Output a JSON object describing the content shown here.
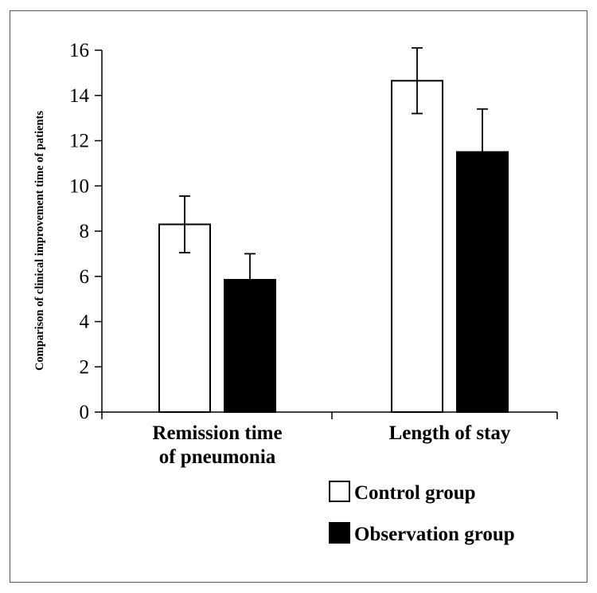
{
  "chart_data": {
    "type": "bar",
    "title": "",
    "xlabel": "",
    "ylabel": "Comparison of clinical improvement time of patients",
    "ylim": [
      0,
      16
    ],
    "yticks": [
      0,
      2,
      4,
      6,
      8,
      10,
      12,
      14,
      16
    ],
    "categories": [
      [
        "Remission time",
        "of pneumonia"
      ],
      [
        "Length of stay"
      ]
    ],
    "series": [
      {
        "name": "Control group",
        "color": "#ffffff",
        "values": [
          8.3,
          14.65
        ],
        "errors": [
          1.25,
          1.45
        ]
      },
      {
        "name": "Observation group",
        "color": "#000000",
        "values": [
          5.85,
          11.5
        ],
        "errors": [
          1.15,
          1.9
        ]
      }
    ],
    "legend_position": "bottom-right"
  }
}
